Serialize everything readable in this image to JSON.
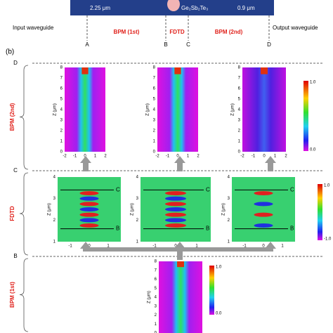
{
  "part_a": {
    "width_left": "2.25 μm",
    "material": "Ge₂Sb₂Te₃",
    "width_right": "0.9 μm",
    "input_label": "Input waveguide",
    "output_label": "Output waveguide",
    "markers": [
      "A",
      "B",
      "C",
      "D"
    ],
    "sections": [
      "BPM (1st)",
      "FDTD",
      "BPM (2nd)"
    ]
  },
  "part_b": {
    "label": "(b)",
    "side_markers": [
      "D",
      "C",
      "B"
    ],
    "row_names": [
      "BPM (2nd)",
      "FDTD",
      "BPM (1st)"
    ],
    "bpm_axes": {
      "ylabel": "Z (μm)",
      "yticks": [
        "0",
        "1",
        "2",
        "3",
        "4",
        "5",
        "6",
        "7",
        "8"
      ],
      "xticks": [
        "-2",
        "-1",
        "0",
        "1",
        "2"
      ],
      "colorbar": [
        "1.0",
        "0.0"
      ]
    },
    "fdtd_axes": {
      "ylabel": "Z (μm)",
      "yticks": [
        "1",
        "2",
        "3",
        "4"
      ],
      "xticks": [
        "-1",
        "0",
        "1"
      ],
      "colorbar": [
        "1.0",
        "-1.0"
      ],
      "line_markers": [
        "C",
        "B"
      ]
    }
  }
}
